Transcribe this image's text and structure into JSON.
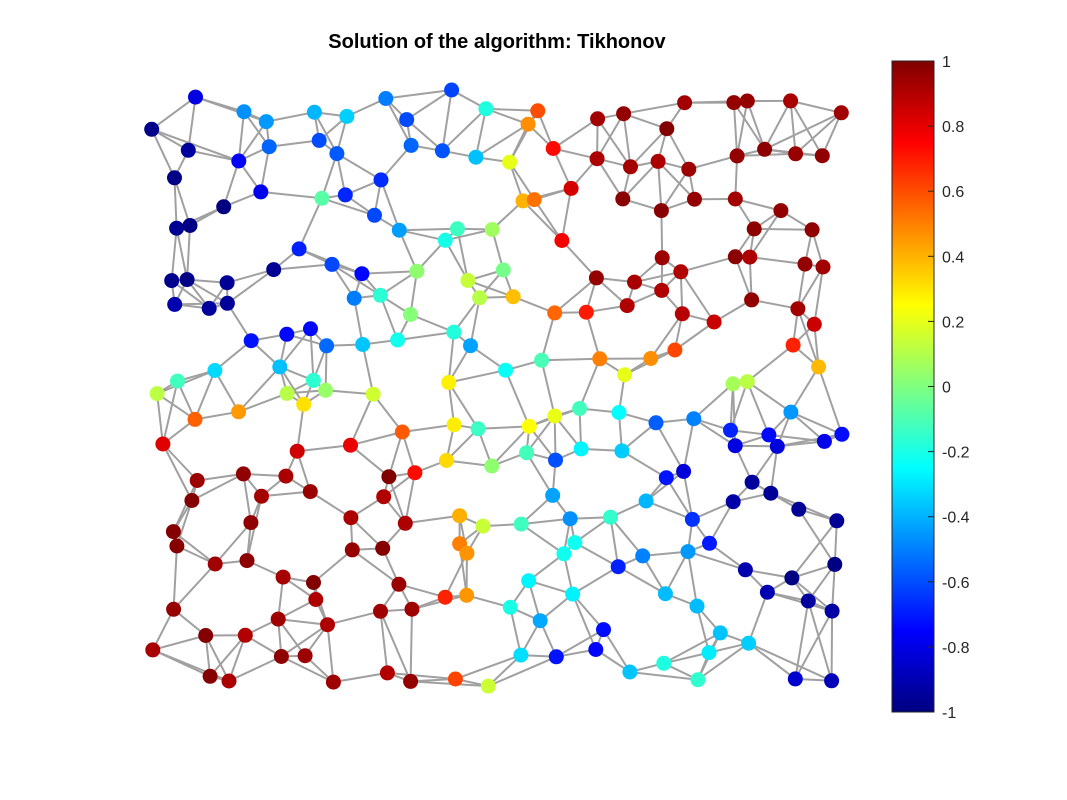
{
  "chart_data": {
    "type": "graph",
    "title": "Solution of the algorithm: Tikhonov",
    "colormap": "jet",
    "colorbar": {
      "range": [
        -1,
        1
      ],
      "ticks": [
        -1,
        -0.8,
        -0.6,
        -0.4,
        -0.2,
        0,
        0.2,
        0.4,
        0.6,
        0.8,
        1
      ],
      "tick_labels": [
        "-1",
        "-0.8",
        "-0.6",
        "-0.4",
        "-0.2",
        "0",
        "0.2",
        "0.4",
        "0.6",
        "0.8",
        "1"
      ]
    },
    "edge_color": "#a0a0a0",
    "axes_visible": false,
    "node_count": 241,
    "value_distribution": {
      "upper-left": -0.95,
      "upper-right": 1.0,
      "lower-left": 1.0,
      "lower-right": -0.95,
      "center-band": "transitional values between -0.6 and 0.5"
    }
  }
}
